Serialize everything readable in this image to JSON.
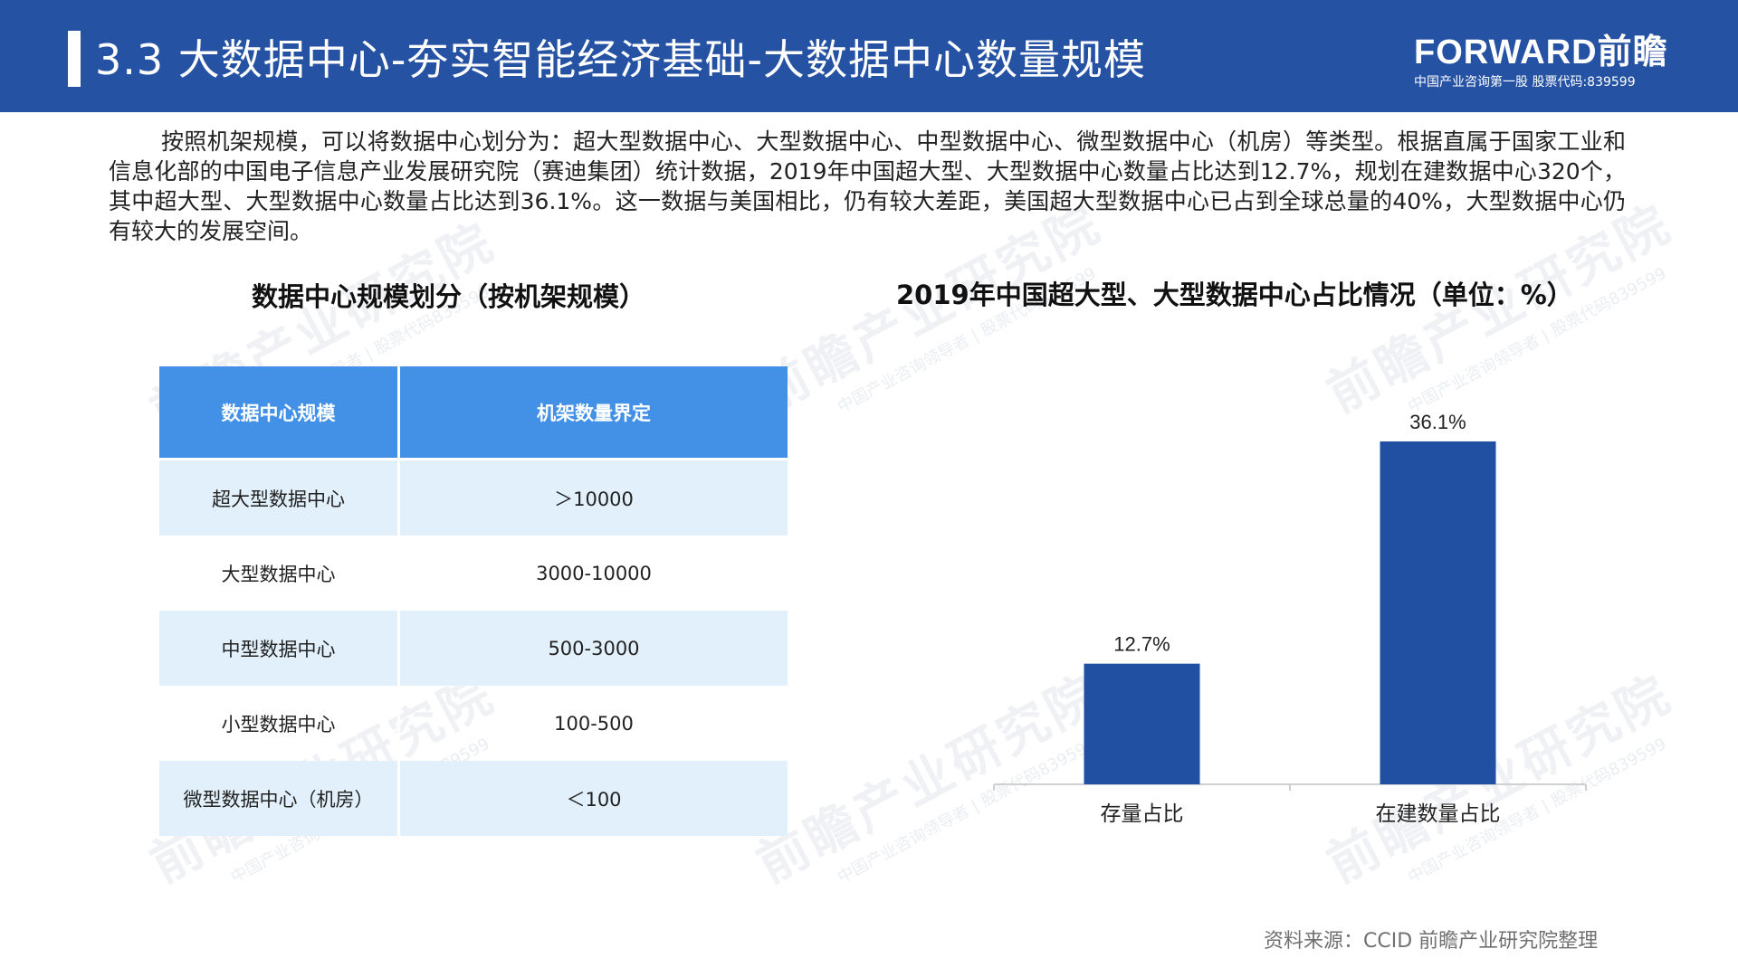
{
  "header": {
    "title": "3.3 大数据中心-夯实智能经济基础-大数据中心数量规模",
    "brand_name": "FORWARD前瞻",
    "brand_sub": "中国产业咨询第一股 股票代码:839599"
  },
  "intro": "按照机架规模，可以将数据中心划分为：超大型数据中心、大型数据中心、中型数据中心、微型数据中心（机房）等类型。根据直属于国家工业和信息化部的中国电子信息产业发展研究院（赛迪集团）统计数据，2019年中国超大型、大型数据中心数量占比达到12.7%，规划在建数据中心320个，其中超大型、大型数据中心数量占比达到36.1%。这一数据与美国相比，仍有较大差距，美国超大型数据中心已占到全球总量的40%，大型数据中心仍有较大的发展空间。",
  "table": {
    "title": "数据中心规模划分（按机架规模）",
    "headers": [
      "数据中心规模",
      "机架数量界定"
    ],
    "rows": [
      [
        "超大型数据中心",
        "＞10000"
      ],
      [
        "大型数据中心",
        "3000-10000"
      ],
      [
        "中型数据中心",
        "500-3000"
      ],
      [
        "小型数据中心",
        "100-500"
      ],
      [
        "微型数据中心（机房）",
        "＜100"
      ]
    ]
  },
  "chart_data": {
    "type": "bar",
    "title": "2019年中国超大型、大型数据中心占比情况（单位：%）",
    "categories": [
      "存量占比",
      "在建数量占比"
    ],
    "values": [
      12.7,
      36.1
    ],
    "value_labels": [
      "12.7%",
      "36.1%"
    ],
    "ylim": [
      0,
      40
    ],
    "bar_color": "#2150a3",
    "grid": false,
    "legend": "none"
  },
  "source": "资料来源：CCID 前瞻产业研究院整理",
  "watermark": {
    "main": "前瞻产业研究院",
    "sub": "中国产业咨询领导者 | 股票代码839599"
  },
  "colors": {
    "header_bg": "#2552a3",
    "table_header_bg": "#4291e6",
    "table_stripe_bg": "#e1f0fb",
    "bar": "#2150a3"
  }
}
